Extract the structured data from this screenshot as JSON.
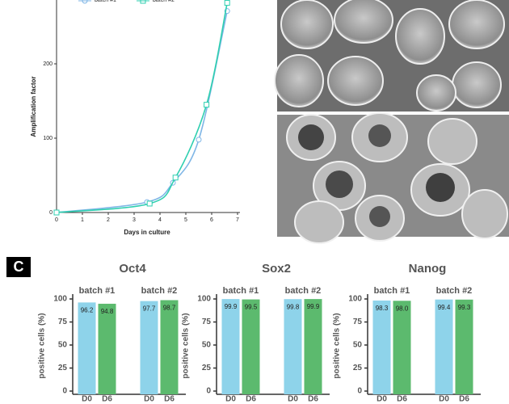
{
  "chart_data": [
    {
      "type": "line",
      "ylabel": "Amplification factor",
      "xlabel": "Days in culture",
      "xlim": [
        0,
        7
      ],
      "xticks": [
        0,
        1,
        2,
        3,
        4,
        5,
        6,
        7
      ],
      "ylim": [
        0,
        285
      ],
      "yticks": [
        0,
        100,
        200
      ],
      "series": [
        {
          "name": "batch #1",
          "color": "#7fb6e6",
          "marker": "circle",
          "x": [
            0,
            3.5,
            4.5,
            5.5,
            6.6
          ],
          "values": [
            0,
            14,
            40,
            98,
            271
          ]
        },
        {
          "name": "batch #2",
          "color": "#2fcfb0",
          "marker": "square",
          "x": [
            0,
            3.6,
            4.6,
            5.8,
            6.6
          ],
          "values": [
            0,
            12,
            47,
            145,
            282
          ]
        }
      ]
    },
    {
      "type": "bar",
      "label": "C",
      "title": "Oct4",
      "ylabel": "positive cells (%)",
      "ylim": [
        0,
        100
      ],
      "yticks": [
        0,
        25,
        50,
        75,
        100
      ],
      "categories": [
        "batch #1",
        "batch #2"
      ],
      "series": [
        {
          "name": "D0",
          "color": "#8ed3ea",
          "values": [
            96.2,
            97.7
          ],
          "value_labels": [
            "96.2",
            "97.7"
          ]
        },
        {
          "name": "D6",
          "color": "#5cba6e",
          "values": [
            94.8,
            98.7
          ],
          "value_labels": [
            "94.8",
            "98.7"
          ]
        }
      ]
    },
    {
      "type": "bar",
      "title": "Sox2",
      "ylabel": "positive cells (%)",
      "ylim": [
        0,
        100
      ],
      "yticks": [
        0,
        25,
        50,
        75,
        100
      ],
      "categories": [
        "batch #1",
        "batch #2"
      ],
      "series": [
        {
          "name": "D0",
          "color": "#8ed3ea",
          "values": [
            99.9,
            99.8
          ],
          "value_labels": [
            "99.9",
            "99.8"
          ]
        },
        {
          "name": "D6",
          "color": "#5cba6e",
          "values": [
            99.5,
            99.9
          ],
          "value_labels": [
            "99.5",
            "99.9"
          ]
        }
      ]
    },
    {
      "type": "bar",
      "title": "Nanog",
      "ylabel": "positive cells (%)",
      "ylim": [
        0,
        100
      ],
      "yticks": [
        0,
        25,
        50,
        75,
        100
      ],
      "categories": [
        "batch #1",
        "batch #2"
      ],
      "series": [
        {
          "name": "D0",
          "color": "#8ed3ea",
          "values": [
            98.3,
            99.4
          ],
          "value_labels": [
            "98.3",
            "99.4"
          ]
        },
        {
          "name": "D6",
          "color": "#5cba6e",
          "values": [
            98,
            99.3
          ],
          "value_labels": [
            "98.0",
            "99.3"
          ]
        }
      ]
    }
  ]
}
